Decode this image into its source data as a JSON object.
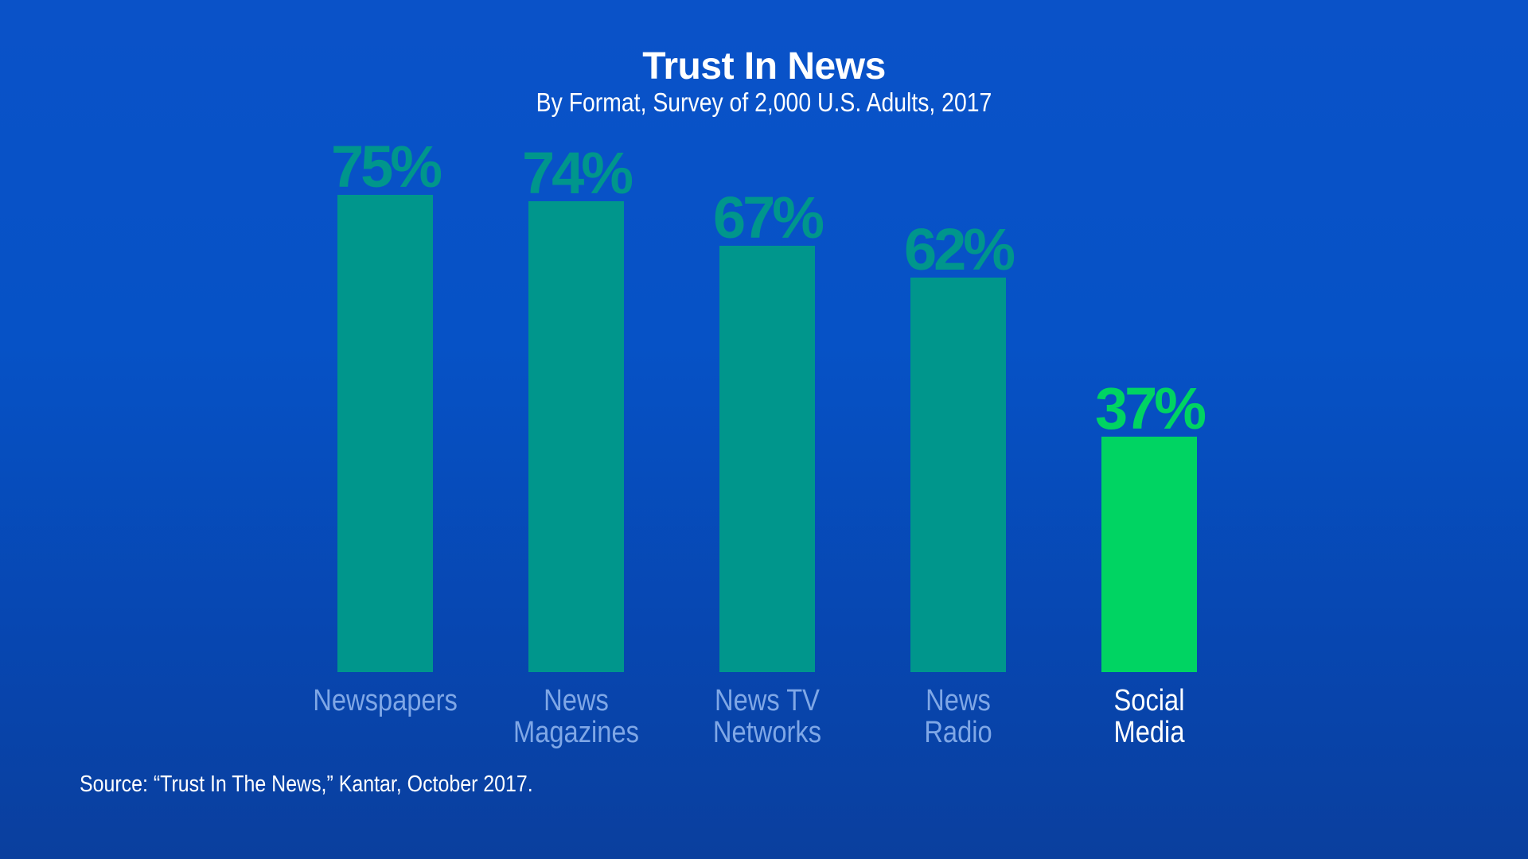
{
  "chart_data": {
    "type": "bar",
    "title": "Trust In News",
    "subtitle": "By Format, Survey of 2,000 U.S. Adults, 2017",
    "categories": [
      [
        "Newspapers"
      ],
      [
        "News",
        "Magazines"
      ],
      [
        "News TV",
        "Networks"
      ],
      [
        "News",
        "Radio"
      ],
      [
        "Social",
        "Media"
      ]
    ],
    "values": [
      75,
      74,
      67,
      62,
      37
    ],
    "value_labels": [
      "75%",
      "74%",
      "67%",
      "62%",
      "37%"
    ],
    "highlight_index": 4,
    "ylim": [
      0,
      100
    ],
    "grid": false,
    "legend": "none"
  },
  "colors": {
    "bar": "#00968c",
    "bar_highlight": "#00d462",
    "label_muted": "#7fa7e6",
    "label_highlight": "#ffffff",
    "value_muted": "#00968c",
    "value_highlight": "#00d462"
  },
  "footer": {
    "source": "Source: “Trust In The News,” Kantar, October 2017."
  }
}
